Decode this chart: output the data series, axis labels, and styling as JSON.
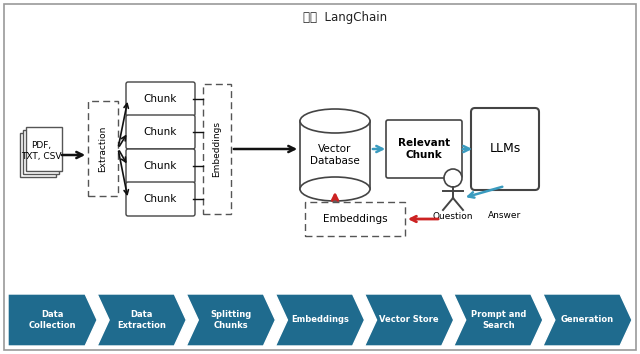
{
  "title": "LangChain",
  "bg_color": "#ffffff",
  "box_edge": "#444444",
  "dashed_edge": "#555555",
  "teal_color": "#1f6b8e",
  "arrow_blue": "#3a9bbf",
  "arrow_red": "#cc2222",
  "arrow_black": "#111111",
  "chunk_labels": [
    "Chunk",
    "Chunk",
    "Chunk",
    "Chunk"
  ],
  "pipeline_steps": [
    "Data\nCollection",
    "Data\nExtraction",
    "Splitting\nChunks",
    "Embeddings",
    "Vector Store",
    "Prompt and\nSearch",
    "Generation"
  ],
  "docs_label": "PDF,\nTXT, CSV",
  "extraction_label": "Extraction",
  "embeddings_label": "Embeddings",
  "vector_db_label": "Vector\nDatabase",
  "relevant_chunk_label": "Relevant\nChunk",
  "llms_label": "LLMs",
  "embeddings2_label": "Embeddings",
  "question_label": "Question",
  "answer_label": "Answer"
}
